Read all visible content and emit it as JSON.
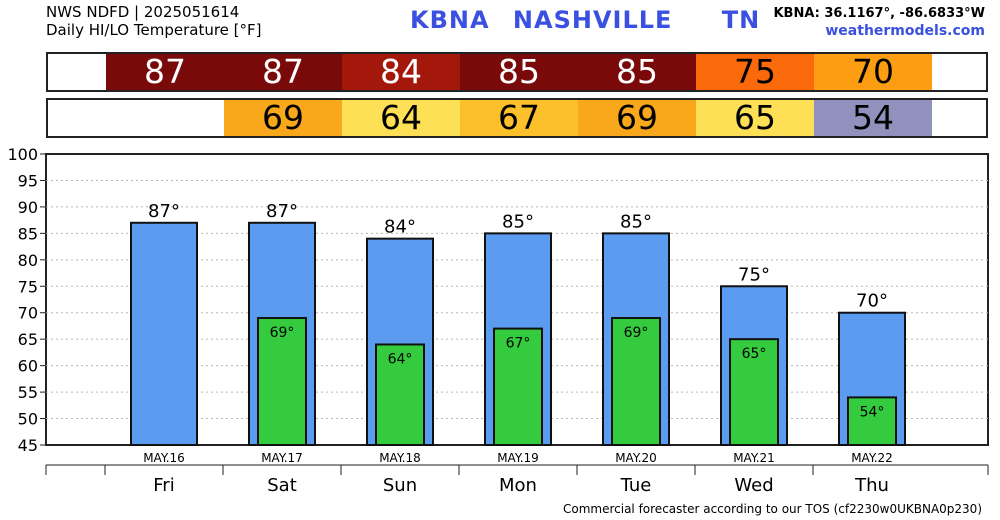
{
  "header": {
    "line1": "NWS NDFD | 2025051614",
    "line2": "Daily HI/LO Temperature [°F]",
    "station_id": "KBNA",
    "city": "NASHVILLE",
    "state": "TN",
    "coords": "KBNA: 36.1167°, -86.6833°W",
    "site": "weathermodels.com"
  },
  "hi_strip": [
    {
      "value": "87",
      "color": "#7a0a0a",
      "text_color": "#ffffff"
    },
    {
      "value": "87",
      "color": "#7a0a0a",
      "text_color": "#ffffff"
    },
    {
      "value": "84",
      "color": "#a3180b",
      "text_color": "#ffffff"
    },
    {
      "value": "85",
      "color": "#7a0a0a",
      "text_color": "#ffffff"
    },
    {
      "value": "85",
      "color": "#7a0a0a",
      "text_color": "#ffffff"
    },
    {
      "value": "75",
      "color": "#fa6a0a",
      "text_color": "#000000"
    },
    {
      "value": "70",
      "color": "#fc9d12",
      "text_color": "#000000"
    }
  ],
  "lo_strip": [
    {
      "value": "",
      "color": "#ffffff",
      "text_color": "#000000"
    },
    {
      "value": "69",
      "color": "#f8a81a",
      "text_color": "#000000"
    },
    {
      "value": "64",
      "color": "#fde055",
      "text_color": "#000000"
    },
    {
      "value": "67",
      "color": "#fbc02a",
      "text_color": "#000000"
    },
    {
      "value": "69",
      "color": "#f8a81a",
      "text_color": "#000000"
    },
    {
      "value": "65",
      "color": "#fde055",
      "text_color": "#000000"
    },
    {
      "value": "54",
      "color": "#9191bd",
      "text_color": "#000000"
    }
  ],
  "chart_data": {
    "type": "bar",
    "categories": [
      "Fri",
      "Sat",
      "Sun",
      "Mon",
      "Tue",
      "Wed",
      "Thu"
    ],
    "dates": [
      "MAY.16",
      "MAY.17",
      "MAY.18",
      "MAY.19",
      "MAY.20",
      "MAY.21",
      "MAY.22"
    ],
    "series": [
      {
        "values": [
          87,
          87,
          84,
          85,
          85,
          75,
          70
        ],
        "color": "#5c9cf0"
      },
      {
        "values": [
          null,
          69,
          64,
          67,
          69,
          65,
          54
        ],
        "color": "#34cc3e"
      }
    ],
    "hi_labels": [
      "87°",
      "87°",
      "84°",
      "85°",
      "85°",
      "75°",
      "70°"
    ],
    "lo_labels": [
      "",
      "69°",
      "64°",
      "67°",
      "69°",
      "65°",
      "54°"
    ],
    "ylim": [
      45,
      100
    ],
    "yticks": [
      "45",
      "50",
      "55",
      "60",
      "65",
      "70",
      "75",
      "80",
      "85",
      "90",
      "95",
      "100"
    ],
    "grid": true
  },
  "footer": "Commercial forecaster according to our TOS (cf2230w0UKBNA0p230)"
}
